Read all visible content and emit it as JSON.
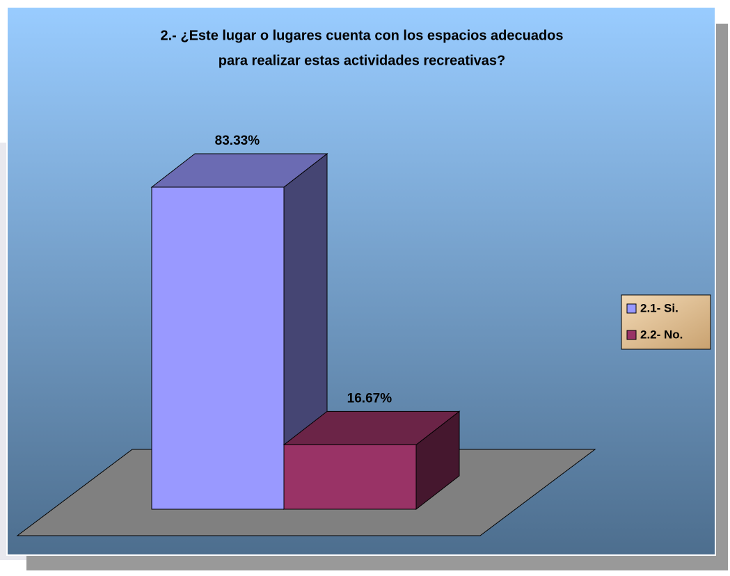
{
  "chart_data": {
    "type": "bar3d",
    "title": [
      "2.- ¿Este lugar o lugares cuenta con los espacios adecuados",
      "para realizar estas actividades recreativas?"
    ],
    "series": [
      {
        "name": "2.1- Si.",
        "color": "#9999ff",
        "values": [
          83.33
        ],
        "value_labels": [
          "83.33%"
        ]
      },
      {
        "name": "2.2- No.",
        "color": "#993366",
        "values": [
          16.67
        ],
        "value_labels": [
          "16.67%"
        ]
      }
    ],
    "legend": "right"
  }
}
